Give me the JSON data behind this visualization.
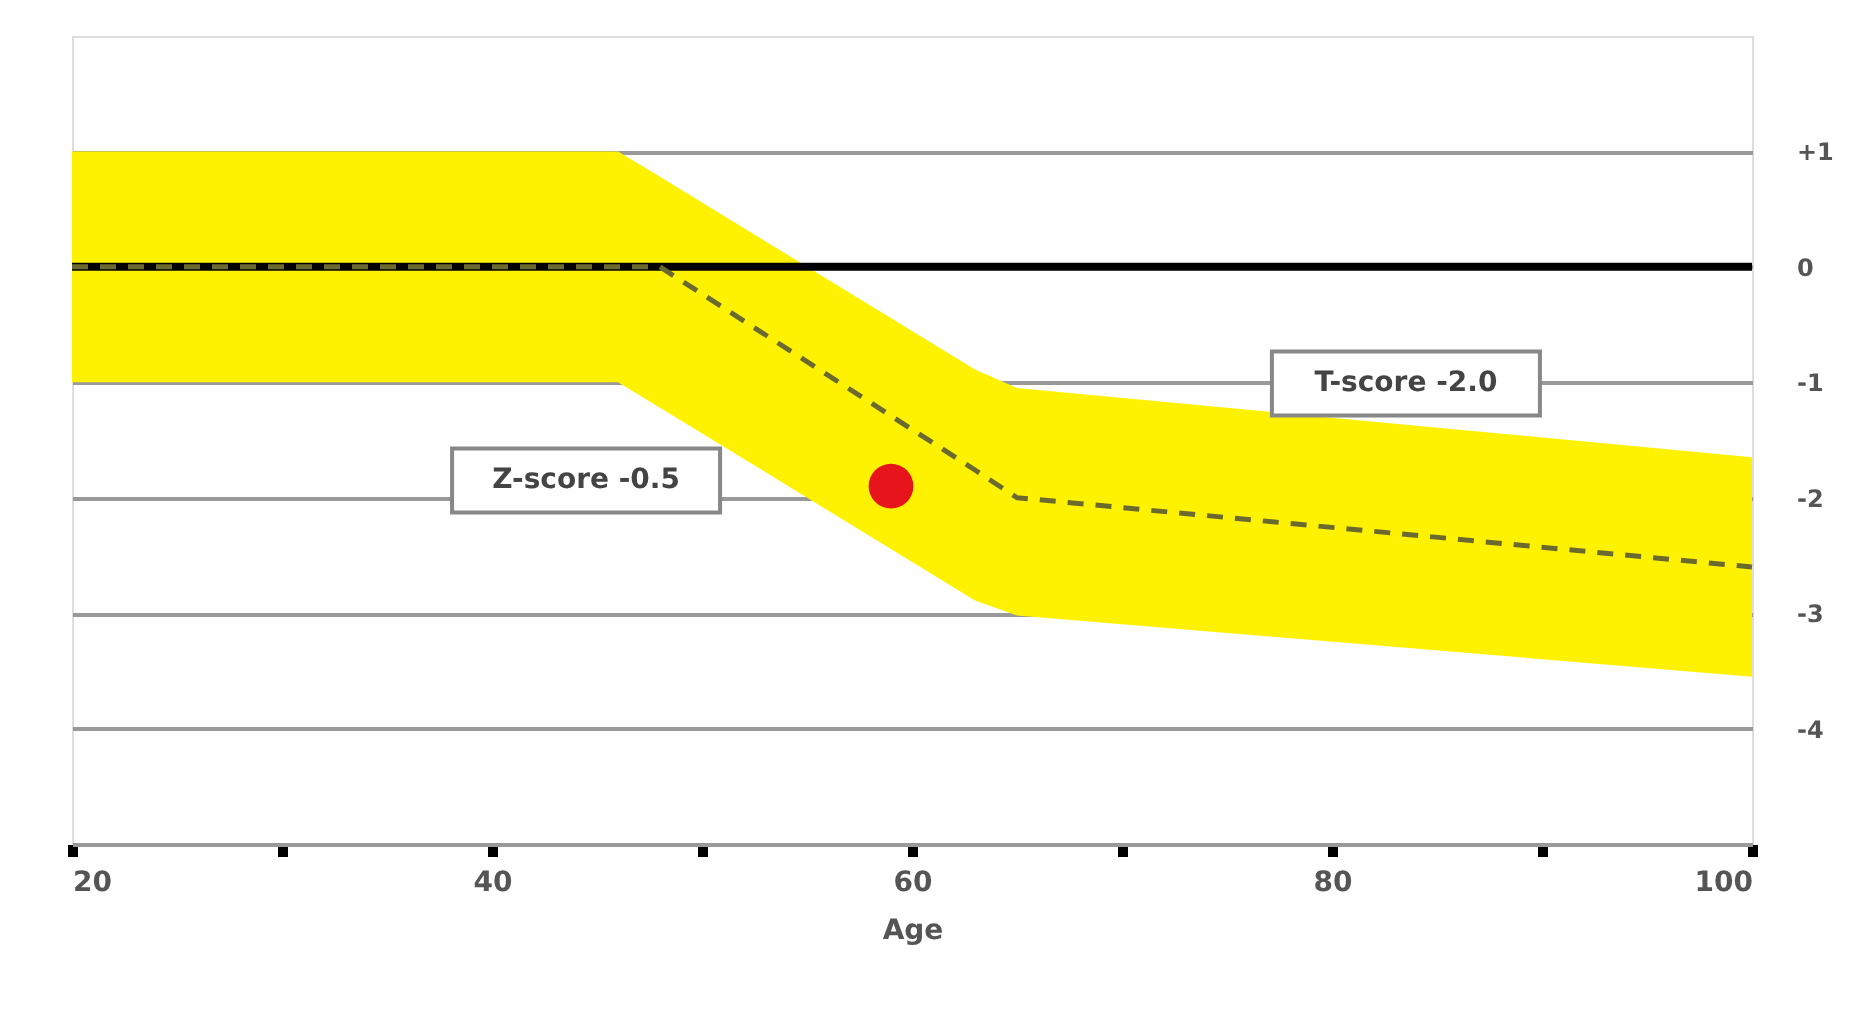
{
  "chart_data": {
    "type": "line",
    "xlabel": "Age",
    "xlim": [
      20,
      100
    ],
    "xticks": [
      20,
      {
        "value": 30,
        "label": null
      },
      40,
      {
        "value": 50,
        "label": null
      },
      60,
      {
        "value": 70,
        "label": null
      },
      80,
      {
        "value": 90,
        "label": null
      },
      100
    ],
    "ylim": [
      -5,
      2
    ],
    "yticks": [
      {
        "value": 1,
        "label": "+1"
      },
      {
        "value": 0,
        "label": "0"
      },
      {
        "value": -1,
        "label": "-1"
      },
      {
        "value": -2,
        "label": "-2"
      },
      {
        "value": -3,
        "label": "-3"
      },
      {
        "value": -4,
        "label": "-4"
      }
    ],
    "grid": "y",
    "series": [
      {
        "color": "#6b6a2e",
        "line_style": "dashed",
        "x": [
          20,
          46,
          48,
          63,
          65,
          100
        ],
        "values": [
          0,
          0,
          0,
          -1.76,
          -2.0,
          -2.6
        ],
        "lower": [
          -1,
          -1,
          -1.22,
          -2.89,
          -3.02,
          -3.55
        ],
        "upper": [
          1,
          1,
          0.78,
          -0.89,
          -1.05,
          -1.65
        ]
      },
      {
        "type": "scatter",
        "color": "#e8141c",
        "marker": "circle",
        "x": [
          59
        ],
        "values": [
          -1.9
        ]
      }
    ],
    "ref_lines": [
      {
        "axis": "y",
        "value": 0,
        "color": "#000000",
        "line_style": "solid"
      }
    ],
    "annotations": [
      "T-score -2.0",
      "Z-score -0.5"
    ]
  }
}
